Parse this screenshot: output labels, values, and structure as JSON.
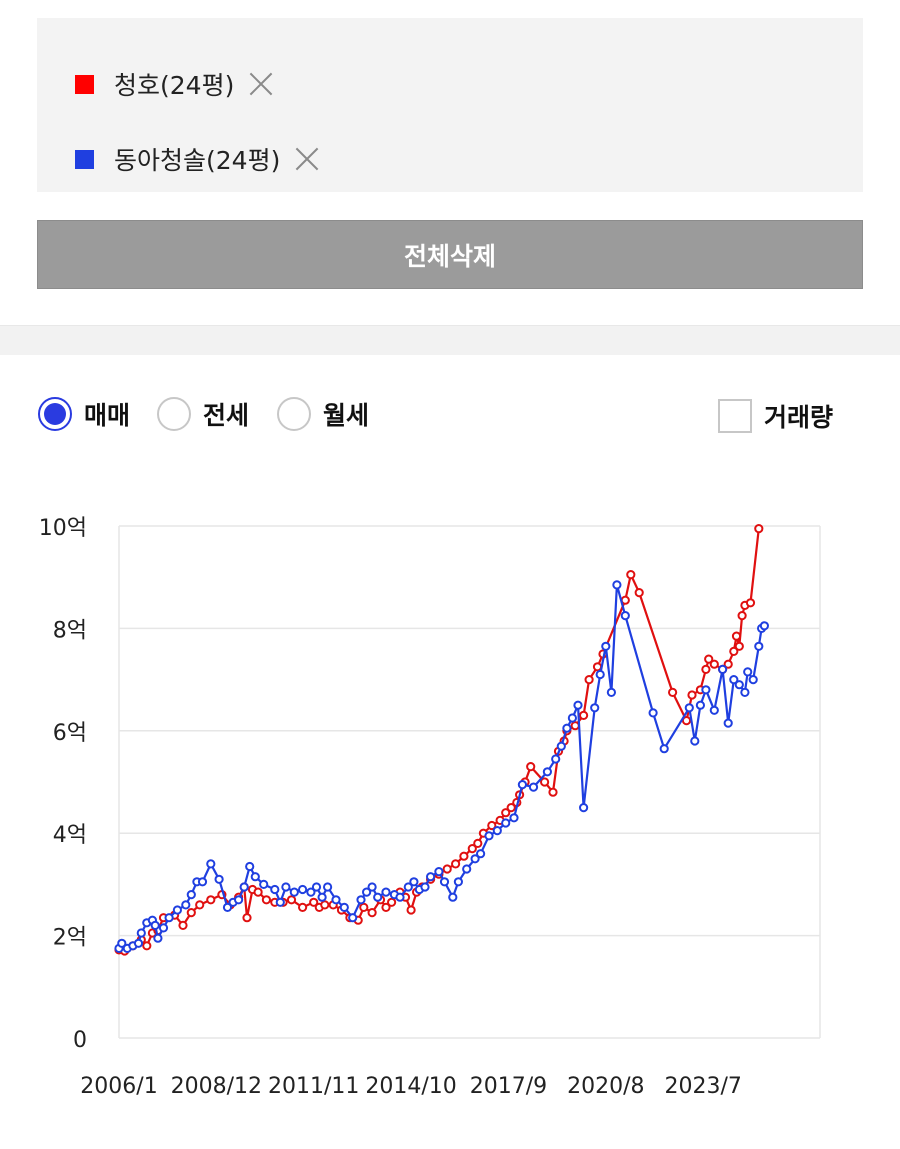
{
  "compare": {
    "items": [
      {
        "label": "청호(24평)",
        "color": "#ff0000"
      },
      {
        "label": "동아청솔(24평)",
        "color": "#1f3fe0"
      }
    ],
    "delete_all_label": "전체삭제"
  },
  "filters": {
    "options": [
      {
        "label": "매매",
        "checked": true
      },
      {
        "label": "전세",
        "checked": false
      },
      {
        "label": "월세",
        "checked": false
      }
    ],
    "volume_label": "거래량",
    "volume_checked": false
  },
  "chart_data": {
    "type": "line",
    "x_start": "2006-01",
    "x_end": "2027-01",
    "xtick_labels": [
      "2006/1",
      "2008/12",
      "2011/11",
      "2014/10",
      "2017/9",
      "2020/8",
      "2023/7"
    ],
    "ytick_labels": [
      "0",
      "2억",
      "4억",
      "6억",
      "8억",
      "10억"
    ],
    "ylim": [
      0,
      10
    ],
    "grid": true,
    "series": [
      {
        "name": "청호(24평)",
        "color": "#e01010",
        "points": [
          [
            "2006-01",
            1.72
          ],
          [
            "2006-03",
            1.7
          ],
          [
            "2006-06",
            1.8
          ],
          [
            "2006-09",
            1.92
          ],
          [
            "2006-11",
            1.8
          ],
          [
            "2007-01",
            2.05
          ],
          [
            "2007-03",
            2.1
          ],
          [
            "2007-05",
            2.35
          ],
          [
            "2007-09",
            2.4
          ],
          [
            "2007-12",
            2.2
          ],
          [
            "2008-03",
            2.45
          ],
          [
            "2008-06",
            2.6
          ],
          [
            "2008-10",
            2.7
          ],
          [
            "2009-02",
            2.8
          ],
          [
            "2009-05",
            2.6
          ],
          [
            "2009-08",
            2.75
          ],
          [
            "2009-10",
            2.95
          ],
          [
            "2009-11",
            2.35
          ],
          [
            "2010-01",
            2.9
          ],
          [
            "2010-03",
            2.85
          ],
          [
            "2010-06",
            2.7
          ],
          [
            "2010-09",
            2.65
          ],
          [
            "2010-12",
            2.65
          ],
          [
            "2011-03",
            2.7
          ],
          [
            "2011-07",
            2.55
          ],
          [
            "2011-11",
            2.65
          ],
          [
            "2012-01",
            2.55
          ],
          [
            "2012-03",
            2.6
          ],
          [
            "2012-06",
            2.6
          ],
          [
            "2012-09",
            2.5
          ],
          [
            "2012-12",
            2.35
          ],
          [
            "2013-03",
            2.3
          ],
          [
            "2013-05",
            2.55
          ],
          [
            "2013-08",
            2.45
          ],
          [
            "2013-11",
            2.7
          ],
          [
            "2014-01",
            2.55
          ],
          [
            "2014-03",
            2.65
          ],
          [
            "2014-06",
            2.85
          ],
          [
            "2014-08",
            2.75
          ],
          [
            "2014-10",
            2.5
          ],
          [
            "2014-12",
            2.85
          ],
          [
            "2015-02",
            2.95
          ],
          [
            "2015-05",
            3.1
          ],
          [
            "2015-08",
            3.2
          ],
          [
            "2015-11",
            3.3
          ],
          [
            "2016-02",
            3.4
          ],
          [
            "2016-05",
            3.55
          ],
          [
            "2016-08",
            3.7
          ],
          [
            "2016-10",
            3.8
          ],
          [
            "2016-12",
            4.0
          ],
          [
            "2017-03",
            4.15
          ],
          [
            "2017-06",
            4.25
          ],
          [
            "2017-08",
            4.4
          ],
          [
            "2017-10",
            4.5
          ],
          [
            "2017-12",
            4.6
          ],
          [
            "2018-01",
            4.75
          ],
          [
            "2018-03",
            5.0
          ],
          [
            "2018-05",
            5.3
          ],
          [
            "2018-10",
            5.0
          ],
          [
            "2019-01",
            4.8
          ],
          [
            "2019-03",
            5.6
          ],
          [
            "2019-05",
            5.8
          ],
          [
            "2019-06",
            6.0
          ],
          [
            "2019-09",
            6.1
          ],
          [
            "2019-12",
            6.3
          ],
          [
            "2020-02",
            7.0
          ],
          [
            "2020-05",
            7.25
          ],
          [
            "2020-07",
            7.5
          ],
          [
            "2021-03",
            8.55
          ],
          [
            "2021-05",
            9.05
          ],
          [
            "2021-08",
            8.7
          ],
          [
            "2022-08",
            6.75
          ],
          [
            "2023-01",
            6.2
          ],
          [
            "2023-03",
            6.7
          ],
          [
            "2023-06",
            6.8
          ],
          [
            "2023-08",
            7.2
          ],
          [
            "2023-09",
            7.4
          ],
          [
            "2023-11",
            7.3
          ],
          [
            "2024-02",
            7.2
          ],
          [
            "2024-04",
            7.3
          ],
          [
            "2024-06",
            7.55
          ],
          [
            "2024-07",
            7.85
          ],
          [
            "2024-08",
            7.65
          ],
          [
            "2024-09",
            8.25
          ],
          [
            "2024-10",
            8.45
          ],
          [
            "2024-12",
            8.5
          ],
          [
            "2025-03",
            9.95
          ]
        ]
      },
      {
        "name": "동아청솔(24평)",
        "color": "#1f3fe0",
        "points": [
          [
            "2006-01",
            1.75
          ],
          [
            "2006-02",
            1.85
          ],
          [
            "2006-04",
            1.75
          ],
          [
            "2006-06",
            1.8
          ],
          [
            "2006-08",
            1.85
          ],
          [
            "2006-09",
            2.05
          ],
          [
            "2006-11",
            2.25
          ],
          [
            "2007-01",
            2.3
          ],
          [
            "2007-02",
            2.2
          ],
          [
            "2007-03",
            1.95
          ],
          [
            "2007-05",
            2.15
          ],
          [
            "2007-07",
            2.35
          ],
          [
            "2007-10",
            2.5
          ],
          [
            "2008-01",
            2.6
          ],
          [
            "2008-03",
            2.8
          ],
          [
            "2008-05",
            3.05
          ],
          [
            "2008-07",
            3.05
          ],
          [
            "2008-10",
            3.4
          ],
          [
            "2009-01",
            3.1
          ],
          [
            "2009-04",
            2.55
          ],
          [
            "2009-06",
            2.65
          ],
          [
            "2009-08",
            2.7
          ],
          [
            "2009-10",
            2.95
          ],
          [
            "2009-12",
            3.35
          ],
          [
            "2010-02",
            3.15
          ],
          [
            "2010-05",
            3.0
          ],
          [
            "2010-09",
            2.9
          ],
          [
            "2010-11",
            2.65
          ],
          [
            "2011-01",
            2.95
          ],
          [
            "2011-04",
            2.85
          ],
          [
            "2011-07",
            2.9
          ],
          [
            "2011-10",
            2.85
          ],
          [
            "2011-12",
            2.95
          ],
          [
            "2012-02",
            2.75
          ],
          [
            "2012-04",
            2.95
          ],
          [
            "2012-07",
            2.7
          ],
          [
            "2012-10",
            2.55
          ],
          [
            "2013-01",
            2.35
          ],
          [
            "2013-04",
            2.7
          ],
          [
            "2013-06",
            2.85
          ],
          [
            "2013-08",
            2.95
          ],
          [
            "2013-10",
            2.75
          ],
          [
            "2014-01",
            2.85
          ],
          [
            "2014-04",
            2.8
          ],
          [
            "2014-06",
            2.75
          ],
          [
            "2014-09",
            2.95
          ],
          [
            "2014-11",
            3.05
          ],
          [
            "2015-01",
            2.9
          ],
          [
            "2015-03",
            2.95
          ],
          [
            "2015-05",
            3.15
          ],
          [
            "2015-08",
            3.25
          ],
          [
            "2015-10",
            3.05
          ],
          [
            "2016-01",
            2.75
          ],
          [
            "2016-03",
            3.05
          ],
          [
            "2016-06",
            3.3
          ],
          [
            "2016-09",
            3.5
          ],
          [
            "2016-11",
            3.6
          ],
          [
            "2017-02",
            3.95
          ],
          [
            "2017-05",
            4.05
          ],
          [
            "2017-08",
            4.2
          ],
          [
            "2017-11",
            4.3
          ],
          [
            "2018-02",
            4.95
          ],
          [
            "2018-06",
            4.9
          ],
          [
            "2018-11",
            5.2
          ],
          [
            "2019-02",
            5.45
          ],
          [
            "2019-04",
            5.7
          ],
          [
            "2019-06",
            6.05
          ],
          [
            "2019-08",
            6.25
          ],
          [
            "2019-10",
            6.5
          ],
          [
            "2019-12",
            4.5
          ],
          [
            "2020-04",
            6.45
          ],
          [
            "2020-06",
            7.1
          ],
          [
            "2020-08",
            7.65
          ],
          [
            "2020-10",
            6.75
          ],
          [
            "2020-12",
            8.85
          ],
          [
            "2021-03",
            8.25
          ],
          [
            "2022-01",
            6.35
          ],
          [
            "2022-05",
            5.65
          ],
          [
            "2023-02",
            6.45
          ],
          [
            "2023-04",
            5.8
          ],
          [
            "2023-06",
            6.5
          ],
          [
            "2023-08",
            6.8
          ],
          [
            "2023-11",
            6.4
          ],
          [
            "2024-02",
            7.2
          ],
          [
            "2024-04",
            6.15
          ],
          [
            "2024-06",
            7.0
          ],
          [
            "2024-08",
            6.9
          ],
          [
            "2024-10",
            6.75
          ],
          [
            "2024-11",
            7.15
          ],
          [
            "2025-01",
            7.0
          ],
          [
            "2025-03",
            7.65
          ],
          [
            "2025-04",
            8.0
          ],
          [
            "2025-05",
            8.05
          ]
        ]
      }
    ]
  }
}
